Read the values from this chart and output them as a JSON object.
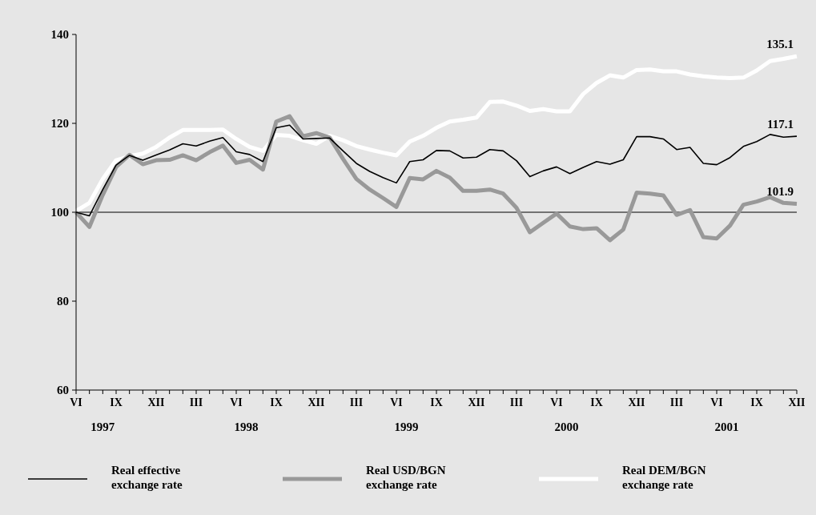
{
  "chart_data": {
    "type": "line",
    "categories": [
      "VI",
      null,
      null,
      "IX",
      null,
      null,
      "XII",
      null,
      null,
      "III",
      null,
      null,
      "VI",
      null,
      null,
      "IX",
      null,
      null,
      "XII",
      null,
      null,
      "III",
      null,
      null,
      "VI",
      null,
      null,
      "IX",
      null,
      null,
      "XII",
      null,
      null,
      "III",
      null,
      null,
      "VI",
      null,
      null,
      "IX",
      null,
      null,
      "XII",
      null,
      null,
      "III",
      null,
      null,
      "VI",
      null,
      null,
      "IX",
      null,
      null,
      "XII"
    ],
    "series": [
      {
        "name": "Real effective exchange rate",
        "color": "#000000",
        "values": [
          100,
          99.2,
          105.1,
          110.6,
          112.8,
          111.7,
          112.9,
          114.0,
          115.4,
          114.9,
          116.0,
          116.8,
          113.6,
          113.0,
          111.4,
          119.0,
          119.6,
          116.5,
          116.6,
          116.7,
          113.8,
          111.0,
          109.2,
          107.8,
          106.6,
          111.4,
          111.8,
          113.9,
          113.8,
          112.2,
          112.4,
          114.1,
          113.8,
          111.6,
          108.0,
          109.3,
          110.2,
          108.7,
          110.1,
          111.4,
          110.8,
          111.8,
          117.0,
          117.0,
          116.5,
          114.1,
          114.6,
          111.0,
          110.7,
          112.3,
          114.8,
          115.9,
          117.5,
          116.9,
          117.1
        ],
        "value_labels": [
          null,
          null,
          null,
          null,
          null,
          null,
          null,
          null,
          null,
          null,
          null,
          null,
          null,
          null,
          null,
          null,
          null,
          null,
          null,
          null,
          null,
          null,
          null,
          null,
          null,
          null,
          null,
          null,
          null,
          null,
          null,
          null,
          null,
          null,
          null,
          null,
          null,
          null,
          null,
          null,
          null,
          null,
          null,
          null,
          null,
          null,
          null,
          null,
          null,
          null,
          null,
          null,
          null,
          null,
          "117.1"
        ]
      },
      {
        "name": "Real USD/BGN exchange rate",
        "color": "#999999",
        "values": [
          100,
          96.7,
          103.9,
          110.2,
          112.9,
          110.8,
          111.7,
          111.8,
          112.8,
          111.7,
          113.5,
          115.0,
          111.1,
          111.8,
          109.6,
          120.4,
          121.6,
          117.1,
          117.8,
          116.8,
          112.0,
          107.5,
          105.1,
          103.2,
          101.2,
          107.7,
          107.4,
          109.3,
          107.8,
          104.8,
          104.8,
          105.1,
          104.2,
          101.0,
          95.5,
          97.6,
          99.7,
          96.8,
          96.2,
          96.4,
          93.7,
          96.1,
          104.4,
          104.2,
          103.8,
          99.4,
          100.5,
          94.4,
          94.1,
          97.0,
          101.7,
          102.4,
          103.4,
          102.1,
          101.9
        ],
        "value_labels": [
          null,
          null,
          null,
          null,
          null,
          null,
          null,
          null,
          null,
          null,
          null,
          null,
          null,
          null,
          null,
          null,
          null,
          null,
          null,
          null,
          null,
          null,
          null,
          null,
          null,
          null,
          null,
          null,
          null,
          null,
          null,
          null,
          null,
          null,
          null,
          null,
          null,
          null,
          null,
          null,
          null,
          null,
          null,
          null,
          null,
          null,
          null,
          null,
          null,
          null,
          null,
          null,
          null,
          null,
          "101.9"
        ]
      },
      {
        "name": "Real DEM/BGN exchange rate",
        "color": "#ffffff",
        "values": [
          100.3,
          102.1,
          107.5,
          111.7,
          112.6,
          113.2,
          114.7,
          116.8,
          118.5,
          118.5,
          118.5,
          118.6,
          116.5,
          114.7,
          113.8,
          117.4,
          117.2,
          116.2,
          115.4,
          117.2,
          116.2,
          114.9,
          114.1,
          113.4,
          112.8,
          115.9,
          117.2,
          119.0,
          120.4,
          120.8,
          121.3,
          124.8,
          124.9,
          124.0,
          122.8,
          123.2,
          122.7,
          122.7,
          126.6,
          129.1,
          130.8,
          130.3,
          132.0,
          132.1,
          131.7,
          131.7,
          131.0,
          130.6,
          130.3,
          130.2,
          130.3,
          131.9,
          134.0,
          134.5,
          135.1
        ],
        "value_labels": [
          null,
          null,
          null,
          null,
          null,
          null,
          null,
          null,
          null,
          null,
          null,
          null,
          null,
          null,
          null,
          null,
          null,
          null,
          null,
          null,
          null,
          null,
          null,
          null,
          null,
          null,
          null,
          null,
          null,
          null,
          null,
          null,
          null,
          null,
          null,
          null,
          null,
          null,
          null,
          null,
          null,
          null,
          null,
          null,
          null,
          null,
          null,
          null,
          null,
          null,
          null,
          null,
          null,
          null,
          "135.1"
        ]
      }
    ],
    "ylim": [
      60,
      140
    ],
    "yticks": [
      60,
      80,
      100,
      120,
      140
    ],
    "ref_lines": [
      {
        "axis": "y",
        "value": 100,
        "color": "#000000"
      }
    ],
    "annotations": [
      "1997",
      "1998",
      "1999",
      "2000",
      "2001"
    ],
    "legend": "bottom",
    "grid": false
  }
}
